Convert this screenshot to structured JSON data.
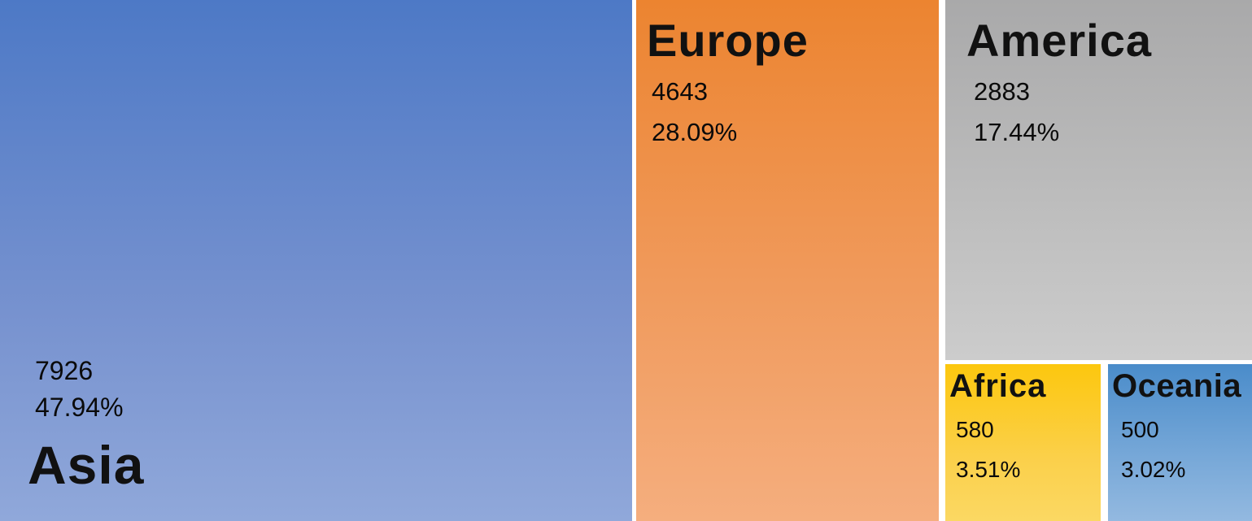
{
  "chart_data": {
    "type": "treemap",
    "title": "",
    "legend": "none",
    "gap_color": "#ffffff",
    "text_color": "#000000",
    "items": [
      {
        "name": "Asia",
        "value": 7926,
        "percent": "47.94%",
        "color_top": "#4d79c6",
        "color_bottom": "#90a8da",
        "label_position": "bottom-left"
      },
      {
        "name": "Europe",
        "value": 4643,
        "percent": "28.09%",
        "color_top": "#ec8430",
        "color_bottom": "#f5ae7e",
        "label_position": "top-left"
      },
      {
        "name": "America",
        "value": 2883,
        "percent": "17.44%",
        "color_top": "#a9a9aa",
        "color_bottom": "#cccccc",
        "label_position": "top-left"
      },
      {
        "name": "Africa",
        "value": 580,
        "percent": "3.51%",
        "color_top": "#fcc70e",
        "color_bottom": "#fbd863",
        "label_position": "top-left"
      },
      {
        "name": "Oceania",
        "value": 500,
        "percent": "3.02%",
        "color_top": "#4a8cca",
        "color_bottom": "#93b9e0",
        "label_position": "top-left"
      }
    ]
  }
}
